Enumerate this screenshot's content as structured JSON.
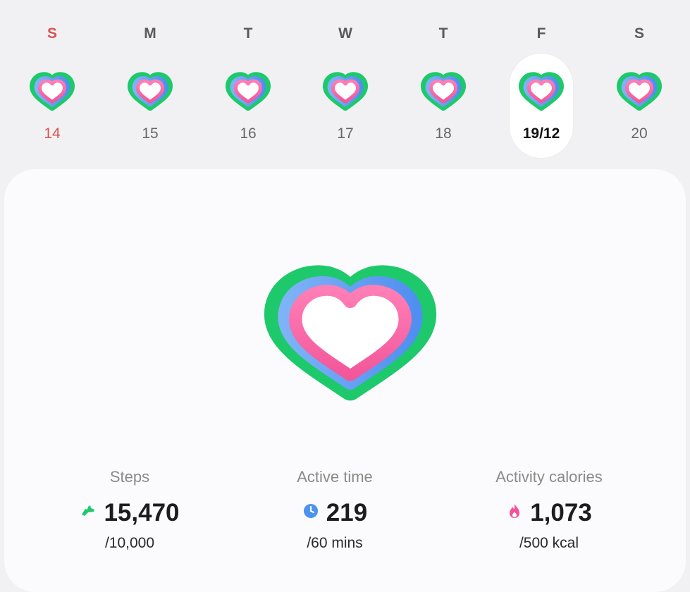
{
  "week": {
    "days": [
      {
        "dow": "S",
        "date": "14"
      },
      {
        "dow": "M",
        "date": "15"
      },
      {
        "dow": "T",
        "date": "16"
      },
      {
        "dow": "W",
        "date": "17"
      },
      {
        "dow": "T",
        "date": "18"
      },
      {
        "dow": "F",
        "date": "19/12"
      },
      {
        "dow": "S",
        "date": "20"
      }
    ],
    "selected_index": 5
  },
  "colors": {
    "steps_ring": "#1ec96b",
    "active_ring": "#5ea2f3",
    "calories_ring": "#fb5b9c",
    "sunday_text": "#d9534f"
  },
  "metrics": {
    "steps": {
      "label": "Steps",
      "value": "15,470",
      "goal": "/10,000",
      "icon": "shoe-icon"
    },
    "active_time": {
      "label": "Active time",
      "value": "219",
      "goal": "/60 mins",
      "icon": "clock-icon"
    },
    "calories": {
      "label": "Activity calories",
      "value": "1,073",
      "goal": "/500 kcal",
      "icon": "flame-icon"
    }
  }
}
